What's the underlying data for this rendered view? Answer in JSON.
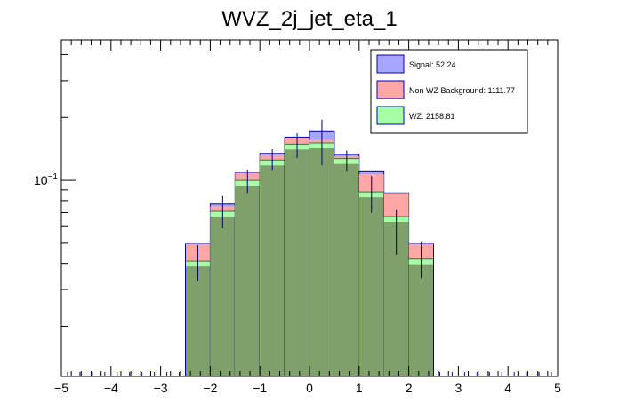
{
  "chart_data": {
    "type": "bar",
    "title": "WVZ_2j_jet_eta_1",
    "xlabel": "",
    "ylabel": "",
    "x_range": [
      -5,
      5
    ],
    "y_scale": "log",
    "y_range": [
      0.0115,
      0.47
    ],
    "y_tick_label": {
      "value": 0.1,
      "base": "10",
      "exponent": "−1"
    },
    "x_ticks": [
      "−5",
      "−4",
      "−3",
      "−2",
      "−1",
      "0",
      "1",
      "2",
      "3",
      "4",
      "5"
    ],
    "grid": false,
    "legend_position": "top-right",
    "bin_edges": [
      -2.5,
      -2.0,
      -1.5,
      -1.0,
      -0.5,
      0.0,
      0.5,
      1.0,
      1.5,
      2.0,
      2.5
    ],
    "series": [
      {
        "name": "Signal: 52.24",
        "color": "#a6a6ff",
        "stack_top": [
          0.0495,
          0.077,
          0.1085,
          0.1345,
          0.161,
          0.171,
          0.133,
          0.11,
          0.087,
          0.0495
        ]
      },
      {
        "name": "Non WZ Background: 1111.77",
        "color": "#ffa6a6",
        "stack_top": [
          0.0495,
          0.075,
          0.1085,
          0.132,
          0.16,
          0.156,
          0.13,
          0.107,
          0.087,
          0.0495
        ]
      },
      {
        "name": "WZ: 2158.81",
        "color": "#a6ffa6",
        "stack_top": [
          0.041,
          0.071,
          0.1,
          0.125,
          0.149,
          0.151,
          0.127,
          0.088,
          0.067,
          0.042
        ]
      }
    ],
    "data_points": {
      "y": [
        0.041,
        0.071,
        0.1,
        0.126,
        0.15,
        0.151,
        0.128,
        0.0885,
        0.057,
        0.042
      ],
      "err_low": [
        0.033,
        0.059,
        0.087,
        0.111,
        0.128,
        0.118,
        0.11,
        0.07,
        0.044,
        0.034
      ],
      "err_high": [
        0.049,
        0.084,
        0.112,
        0.141,
        0.168,
        0.195,
        0.139,
        0.105,
        0.072,
        0.0505
      ]
    },
    "colors": {
      "overlap": "#7f9f6b",
      "frame": "#000000",
      "outline": "#0000aa",
      "error_bar": "#00006f"
    }
  }
}
